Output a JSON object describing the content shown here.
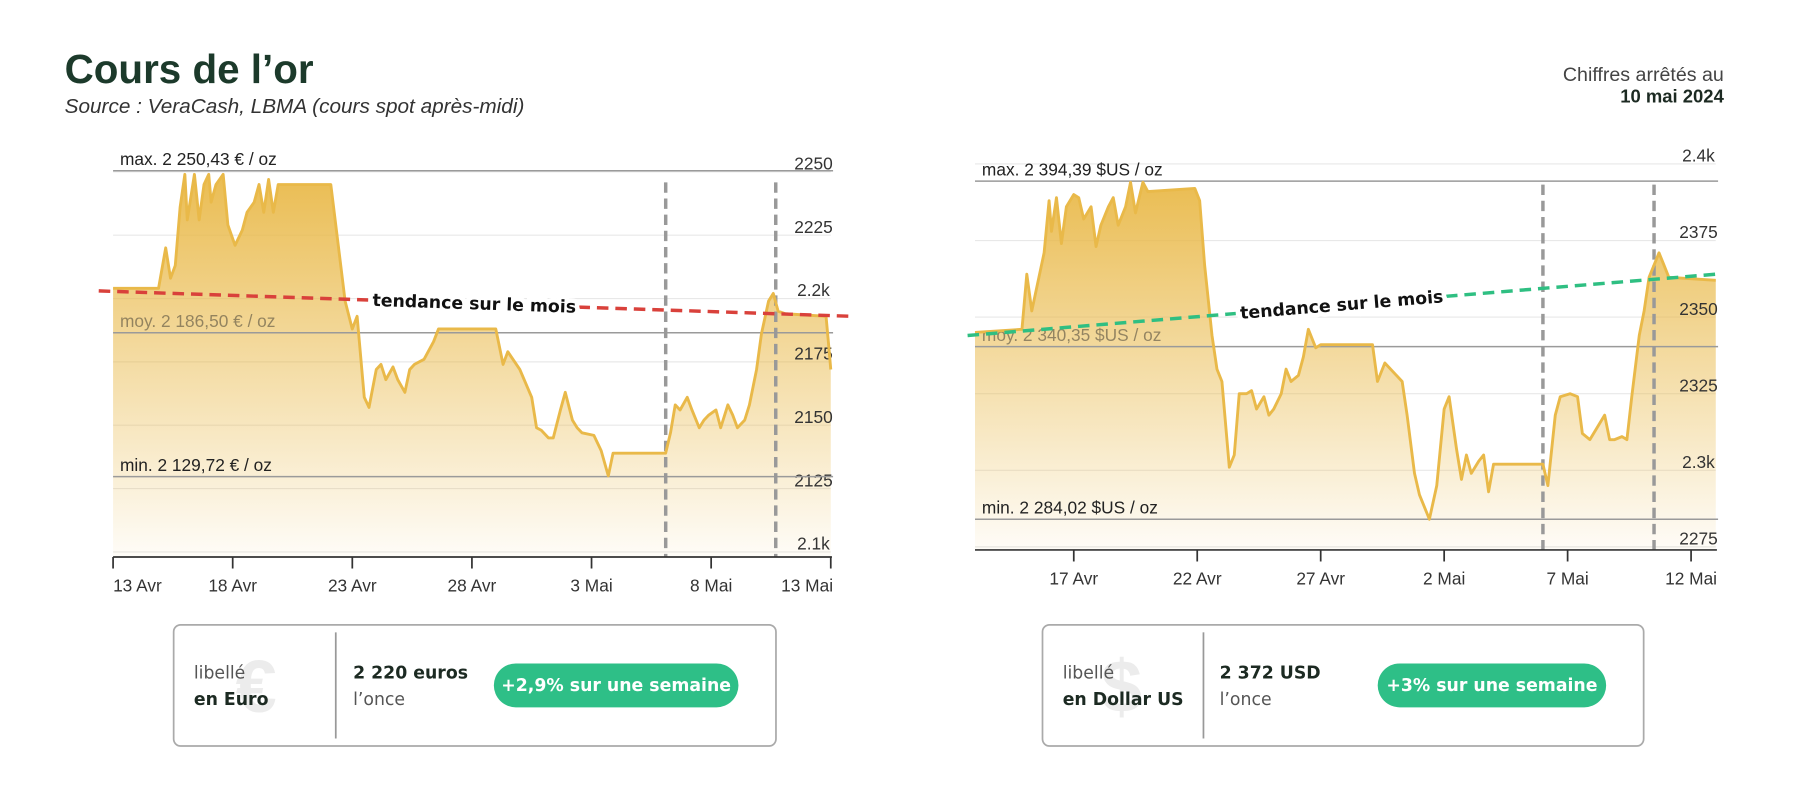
{
  "header": {
    "title": "Cours de l’or",
    "source": "Source : VeraCash, LBMA (cours spot après-midi)",
    "date_intro": "Chiffres arrêtés au",
    "date": "10 mai 2024"
  },
  "chart_data": [
    {
      "type": "area",
      "color": "#e9b949",
      "x": [
        0,
        1.9,
        2.2,
        2.4,
        2.6,
        2.8,
        3.0,
        3.1,
        3.4,
        3.6,
        3.8,
        4.0,
        4.1,
        4.3,
        4.6,
        4.8,
        5.1,
        5.4,
        5.6,
        5.9,
        6.1,
        6.3,
        6.5,
        6.7,
        6.9,
        7.1,
        9.1,
        9.4,
        9.7,
        10.0,
        10.2,
        10.5,
        10.7,
        11.0,
        11.2,
        11.4,
        11.7,
        11.9,
        12.2,
        12.4,
        12.6,
        13.0,
        13.4,
        13.6,
        16.0,
        16.3,
        16.5,
        17.0,
        17.5,
        17.7,
        17.9,
        18.2,
        18.4,
        18.7,
        18.9,
        19.2,
        19.4,
        19.6,
        20.1,
        20.4,
        20.7,
        20.9,
        23.1,
        23.3,
        23.5,
        23.7,
        24.0,
        24.2,
        24.5,
        24.7,
        24.9,
        25.2,
        25.4,
        25.7,
        25.9,
        26.1,
        26.4,
        26.6,
        26.9,
        27.1,
        27.4,
        27.6,
        27.8,
        28.1,
        29.8,
        29.9,
        30.0
      ],
      "values": [
        2204,
        2204,
        2220,
        2208,
        2213,
        2236,
        2249,
        2231,
        2249,
        2231,
        2245,
        2249,
        2238,
        2245,
        2249,
        2229,
        2221,
        2227,
        2234,
        2238,
        2245,
        2234,
        2247,
        2234,
        2245,
        2245,
        2245,
        2222,
        2199,
        2188,
        2193,
        2161,
        2157,
        2172,
        2174,
        2168,
        2173,
        2168,
        2163,
        2172,
        2174,
        2176,
        2183,
        2188,
        2188,
        2174,
        2179,
        2172,
        2161,
        2149,
        2148,
        2145,
        2145,
        2156,
        2163,
        2152,
        2149,
        2147,
        2146,
        2140,
        2130,
        2139,
        2139,
        2147,
        2158,
        2156,
        2161,
        2156,
        2149,
        2152,
        2154,
        2156,
        2149,
        2158,
        2154,
        2149,
        2152,
        2158,
        2172,
        2186,
        2199,
        2202,
        2195,
        2194,
        2193,
        2183,
        2172
      ],
      "xlim": [
        0,
        30
      ],
      "xticks": [
        {
          "value": 0,
          "label": "13 Avr"
        },
        {
          "value": 5,
          "label": "18 Avr"
        },
        {
          "value": 10,
          "label": "23 Avr"
        },
        {
          "value": 15,
          "label": "28 Avr"
        },
        {
          "value": 20,
          "label": "3 Mai"
        },
        {
          "value": 25,
          "label": "8 Mai"
        },
        {
          "value": 30,
          "label": "13 Mai"
        }
      ],
      "ylim": [
        2098,
        2252
      ],
      "yticks": [
        2250,
        2225,
        {
          "value": 2200,
          "label": "2.2k"
        },
        2175,
        2150,
        2125,
        {
          "value": 2100,
          "label": "2.1k"
        }
      ],
      "grid": true,
      "ref_lines": [
        {
          "label": "max. 2 250,43 € / oz",
          "value": 2250.43
        },
        {
          "label": "moy. 2 186,50 € / oz",
          "value": 2186.5
        },
        {
          "label": "min. 2 129,72 € / oz",
          "value": 2129.72
        }
      ],
      "trend": {
        "label": "tendance sur le mois",
        "color": "#d9413b",
        "x": [
          -0.6,
          30.8
        ],
        "values": [
          2203,
          2193
        ]
      },
      "vlines": [
        23.1,
        27.7
      ]
    },
    {
      "type": "area",
      "color": "#e9b949",
      "x": [
        0,
        1.9,
        2.1,
        2.3,
        2.8,
        3.0,
        3.1,
        3.3,
        3.5,
        3.7,
        4.0,
        4.2,
        4.4,
        4.7,
        4.9,
        5.1,
        5.4,
        5.6,
        5.8,
        6.1,
        6.3,
        6.5,
        6.8,
        7.0,
        8.9,
        9.1,
        9.3,
        9.6,
        9.8,
        10.0,
        10.3,
        10.5,
        10.7,
        11.0,
        11.2,
        11.4,
        11.7,
        11.9,
        12.1,
        12.4,
        12.6,
        12.8,
        13.1,
        13.3,
        13.5,
        13.8,
        14.0,
        16.1,
        16.3,
        16.6,
        17.3,
        17.5,
        17.8,
        18.0,
        18.4,
        18.7,
        19.0,
        19.2,
        19.5,
        19.7,
        19.9,
        20.1,
        20.4,
        20.6,
        20.8,
        21.0,
        23.0,
        23.2,
        23.5,
        23.7,
        24.1,
        24.4,
        24.6,
        24.9,
        25.2,
        25.5,
        25.7,
        25.9,
        26.2,
        26.4,
        26.6,
        26.9,
        27.1,
        27.3,
        27.7,
        27.9,
        28.1,
        30.0
      ],
      "values": [
        2345,
        2346,
        2364,
        2352,
        2371,
        2388,
        2378,
        2389,
        2374,
        2386,
        2390,
        2389,
        2382,
        2386,
        2373,
        2380,
        2386,
        2389,
        2380,
        2386,
        2394,
        2384,
        2394,
        2391,
        2392,
        2388,
        2367,
        2344,
        2333,
        2329,
        2301,
        2305,
        2325,
        2325,
        2326,
        2320,
        2324,
        2318,
        2320,
        2325,
        2333,
        2329,
        2331,
        2337,
        2346,
        2340,
        2341,
        2341,
        2329,
        2335,
        2329,
        2318,
        2299,
        2292,
        2284,
        2295,
        2320,
        2324,
        2307,
        2297,
        2305,
        2299,
        2303,
        2305,
        2293,
        2302,
        2302,
        2295,
        2318,
        2324,
        2325,
        2324,
        2312,
        2310,
        2314,
        2318,
        2310,
        2310,
        2311,
        2310,
        2324,
        2344,
        2352,
        2363,
        2371,
        2367,
        2363,
        2362
      ],
      "xlim": [
        0,
        30
      ],
      "xticks": [
        {
          "value": 4,
          "label": "17 Avr"
        },
        {
          "value": 9,
          "label": "22 Avr"
        },
        {
          "value": 14,
          "label": "27 Avr"
        },
        {
          "value": 19,
          "label": "2 Mai"
        },
        {
          "value": 24,
          "label": "7 Mai"
        },
        {
          "value": 29,
          "label": "12 Mai"
        }
      ],
      "ylim": [
        2274,
        2401
      ],
      "yticks": [
        {
          "value": 2400,
          "label": "2.4k"
        },
        2375,
        2350,
        2325,
        {
          "value": 2300,
          "label": "2.3k"
        },
        2275
      ],
      "grid": true,
      "ref_lines": [
        {
          "label": "max. 2 394,39 $US / oz",
          "value": 2394.39
        },
        {
          "label": "moy. 2 340,35 $US / oz",
          "value": 2340.35
        },
        {
          "label": "min. 2 284,02 $US / oz",
          "value": 2284.02
        }
      ],
      "trend": {
        "label": "tendance sur le mois",
        "color": "#2fbf82",
        "x": [
          -0.3,
          30.0
        ],
        "values": [
          2344,
          2364
        ]
      },
      "vlines": [
        23.0,
        27.5
      ]
    }
  ],
  "cards": [
    {
      "icon": "€",
      "caption": "libellé",
      "currency": "en Euro",
      "price": "2 220 euros",
      "unit": "l’once",
      "change": "+2,9% sur une semaine"
    },
    {
      "icon": "$",
      "caption": "libellé",
      "currency": "en Dollar US",
      "price": "2 372  USD",
      "unit": "l’once",
      "change": "+3% sur une semaine"
    }
  ]
}
